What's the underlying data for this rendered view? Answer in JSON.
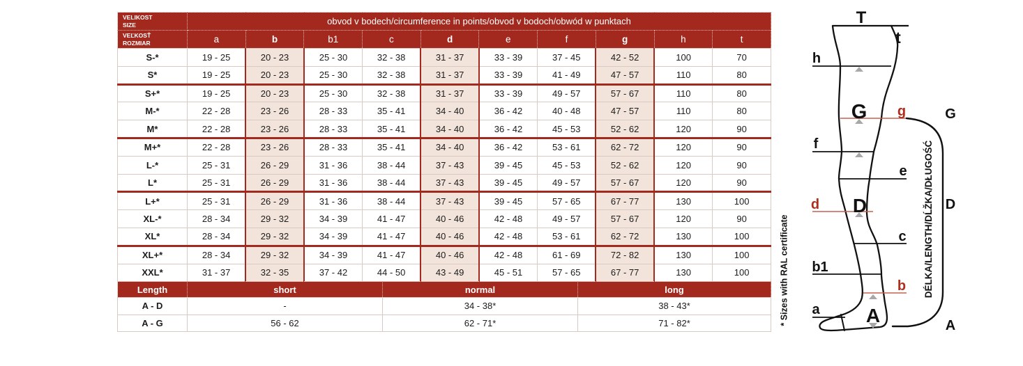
{
  "colors": {
    "header_red": "#A3291F",
    "highlight_bg": "#F2E4DB",
    "red_line": "#C4614E",
    "red_label": "#B02E1D"
  },
  "size_table": {
    "corner_top": [
      "VELIKOST",
      "SIZE"
    ],
    "corner_bottom": [
      "VEĽKOSŤ",
      "ROZMIAR"
    ],
    "title": "obvod v bodech/circumference in points/obvod v bodoch/obwód w punktach",
    "columns": [
      "a",
      "b",
      "b1",
      "c",
      "d",
      "e",
      "f",
      "g",
      "h",
      "t"
    ],
    "highlighted_columns": [
      "b",
      "d",
      "g"
    ],
    "rows": [
      {
        "size": "S-*",
        "group_start": false,
        "values": [
          "19 - 25",
          "20 - 23",
          "25 - 30",
          "32 - 38",
          "31 - 37",
          "33 - 39",
          "37 - 45",
          "42 - 52",
          "100",
          "70"
        ]
      },
      {
        "size": "S*",
        "group_start": false,
        "values": [
          "19 - 25",
          "20 - 23",
          "25 - 30",
          "32 - 38",
          "31 - 37",
          "33 - 39",
          "41 - 49",
          "47 - 57",
          "110",
          "80"
        ]
      },
      {
        "size": "S+*",
        "group_start": true,
        "values": [
          "19 - 25",
          "20 - 23",
          "25 - 30",
          "32 - 38",
          "31 - 37",
          "33 - 39",
          "49 - 57",
          "57 - 67",
          "110",
          "80"
        ]
      },
      {
        "size": "M-*",
        "group_start": false,
        "values": [
          "22 - 28",
          "23 - 26",
          "28 - 33",
          "35 - 41",
          "34 - 40",
          "36 - 42",
          "40 - 48",
          "47 - 57",
          "110",
          "80"
        ]
      },
      {
        "size": "M*",
        "group_start": false,
        "values": [
          "22 - 28",
          "23 - 26",
          "28 - 33",
          "35 - 41",
          "34 - 40",
          "36 - 42",
          "45 - 53",
          "52 - 62",
          "120",
          "90"
        ]
      },
      {
        "size": "M+*",
        "group_start": true,
        "values": [
          "22 - 28",
          "23 - 26",
          "28 - 33",
          "35 - 41",
          "34 - 40",
          "36 - 42",
          "53 - 61",
          "62 - 72",
          "120",
          "90"
        ]
      },
      {
        "size": "L-*",
        "group_start": false,
        "values": [
          "25 - 31",
          "26 - 29",
          "31 - 36",
          "38 - 44",
          "37 - 43",
          "39 - 45",
          "45 - 53",
          "52 - 62",
          "120",
          "90"
        ]
      },
      {
        "size": "L*",
        "group_start": false,
        "values": [
          "25 - 31",
          "26 - 29",
          "31 - 36",
          "38 - 44",
          "37 - 43",
          "39 - 45",
          "49 - 57",
          "57 - 67",
          "120",
          "90"
        ]
      },
      {
        "size": "L+*",
        "group_start": true,
        "values": [
          "25 - 31",
          "26 - 29",
          "31 - 36",
          "38 - 44",
          "37 - 43",
          "39 - 45",
          "57 - 65",
          "67 - 77",
          "130",
          "100"
        ]
      },
      {
        "size": "XL-*",
        "group_start": false,
        "values": [
          "28 - 34",
          "29 - 32",
          "34 - 39",
          "41 - 47",
          "40 - 46",
          "42 - 48",
          "49 - 57",
          "57 - 67",
          "120",
          "90"
        ]
      },
      {
        "size": "XL*",
        "group_start": false,
        "values": [
          "28 - 34",
          "29 - 32",
          "34 - 39",
          "41 - 47",
          "40 - 46",
          "42 - 48",
          "53 - 61",
          "62 - 72",
          "130",
          "100"
        ]
      },
      {
        "size": "XL+*",
        "group_start": true,
        "values": [
          "28 - 34",
          "29 - 32",
          "34 - 39",
          "41 - 47",
          "40 - 46",
          "42 - 48",
          "61 - 69",
          "72 - 82",
          "130",
          "100"
        ]
      },
      {
        "size": "XXL*",
        "group_start": false,
        "values": [
          "31 - 37",
          "32 - 35",
          "37 - 42",
          "44 - 50",
          "43 - 49",
          "45 - 51",
          "57 - 65",
          "67 - 77",
          "130",
          "100"
        ]
      }
    ]
  },
  "length_table": {
    "header": [
      "Length",
      "short",
      "normal",
      "long"
    ],
    "rows": [
      {
        "label": "A - D",
        "values": [
          "-",
          "34 - 38*",
          "38 - 43*"
        ]
      },
      {
        "label": "A - G",
        "values": [
          "56 - 62",
          "62 - 71*",
          "71 - 82*"
        ]
      }
    ]
  },
  "footnote": "* Sizes with RAL certificate",
  "diagram": {
    "labels": {
      "T": "T",
      "t": "t",
      "h": "h",
      "G_inner": "G",
      "g": "g",
      "G_bracket": "G",
      "f": "f",
      "e": "e",
      "d": "d",
      "D_inner": "D",
      "D_bracket": "D",
      "c": "c",
      "b1": "b1",
      "b": "b",
      "a": "a",
      "A_inner": "A",
      "A_bracket": "A"
    },
    "length_axis_text": "DÉLKA/LENGTH/DĹŽKA/DŁUGOŚĆ"
  }
}
